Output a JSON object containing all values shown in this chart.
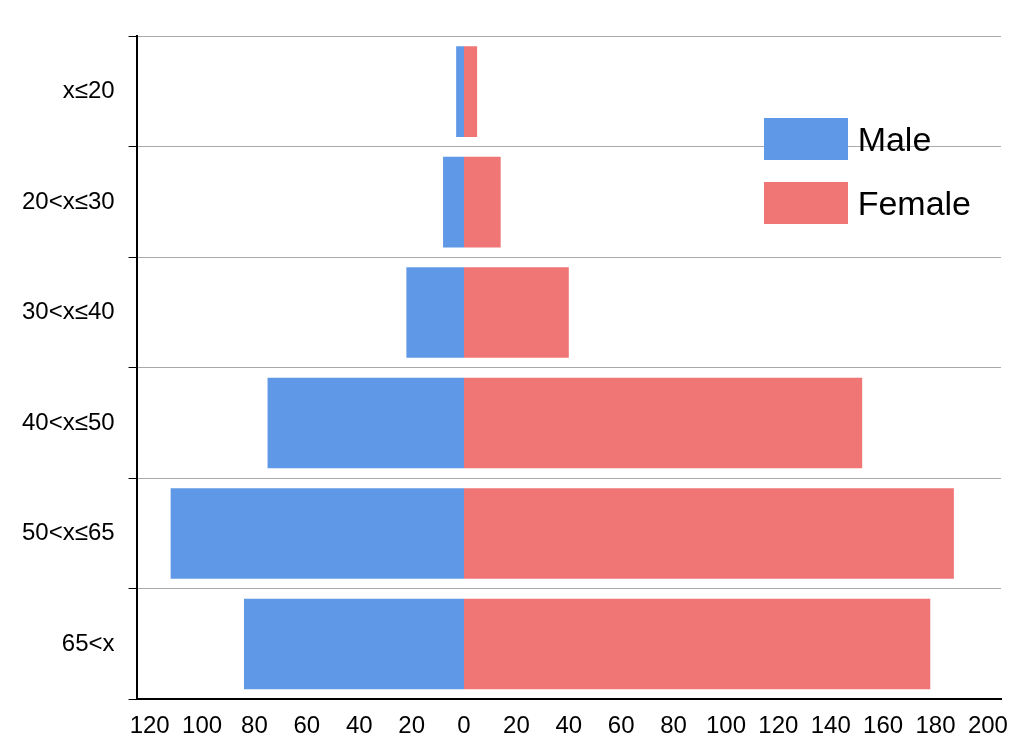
{
  "chart_data": {
    "type": "bar",
    "orientation": "horizontal",
    "stacked": true,
    "categories": [
      "x≤20",
      "20<x≤30",
      "30<x≤40",
      "40<x≤50",
      "50<x≤65",
      "65<x"
    ],
    "series": [
      {
        "name": "Male",
        "color": "#5f98e6",
        "values": [
          -3,
          -8,
          -22,
          -75,
          -112,
          -84
        ]
      },
      {
        "name": "Female",
        "color": "#f07575",
        "values": [
          5,
          14,
          40,
          152,
          187,
          178
        ]
      }
    ],
    "xlim": [
      -125,
      205
    ],
    "xticks": [
      {
        "value": -120,
        "label": "120"
      },
      {
        "value": -100,
        "label": "100"
      },
      {
        "value": -80,
        "label": "80"
      },
      {
        "value": -60,
        "label": "60"
      },
      {
        "value": -40,
        "label": "40"
      },
      {
        "value": -20,
        "label": "20"
      },
      0,
      20,
      40,
      60,
      80,
      100,
      120,
      140,
      160,
      180,
      200
    ],
    "grid": "y",
    "legend": "top right"
  }
}
